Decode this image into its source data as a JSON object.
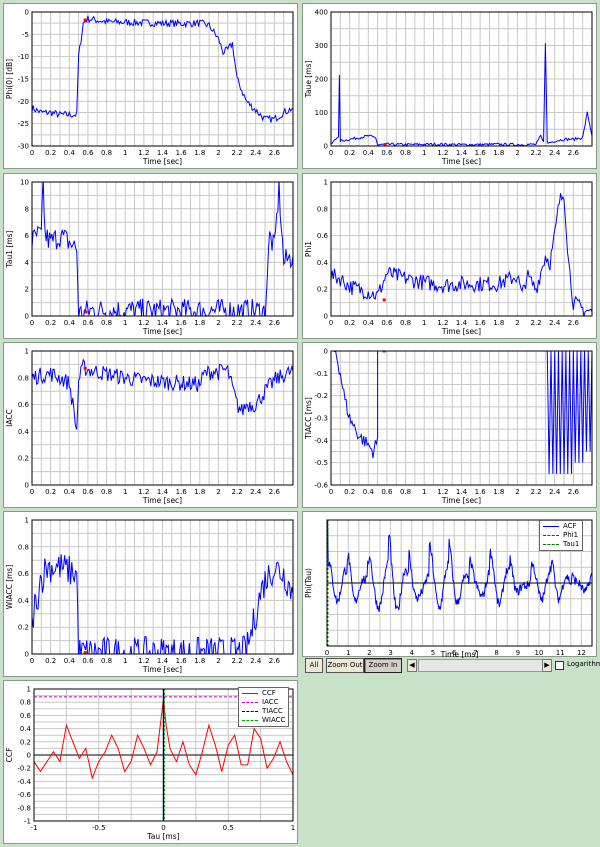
{
  "chart_data": [
    {
      "id": "phi0",
      "type": "line",
      "ylabel": "Phi(0) [dB]",
      "xlabel": "Time [sec]",
      "xlim": [
        0,
        2.8
      ],
      "ylim": [
        -30,
        0
      ],
      "xticks": [
        0,
        0.2,
        0.4,
        0.6,
        0.8,
        1,
        1.2,
        1.4,
        1.6,
        1.8,
        2,
        2.2,
        2.4,
        2.6
      ],
      "yticks": [
        0,
        -5,
        -10,
        -15,
        -20,
        -25,
        -30
      ],
      "series": [
        {
          "color": "#0000ff",
          "noise": 0.8,
          "x": [
            0,
            0.1,
            0.2,
            0.3,
            0.4,
            0.48,
            0.5,
            0.55,
            0.6,
            0.8,
            1.0,
            1.2,
            1.4,
            1.6,
            1.8,
            1.9,
            2.0,
            2.05,
            2.1,
            2.15,
            2.2,
            2.3,
            2.4,
            2.5,
            2.6,
            2.7,
            2.8
          ],
          "y": [
            -21.5,
            -22.5,
            -22.5,
            -23,
            -23,
            -23,
            -10,
            -2.5,
            -1.5,
            -2.2,
            -2.3,
            -2.4,
            -2.5,
            -2.6,
            -2.5,
            -3,
            -6,
            -9,
            -8.5,
            -7,
            -15,
            -20,
            -22,
            -24,
            -24,
            -22.5,
            -21.5
          ]
        }
      ],
      "markers": [
        {
          "x": 0.57,
          "y": -1.8
        }
      ]
    },
    {
      "id": "taue",
      "type": "line",
      "ylabel": "Taue [ms]",
      "xlabel": "Time [sec]",
      "xlim": [
        0,
        2.8
      ],
      "ylim": [
        0,
        400
      ],
      "xticks": [
        0,
        0.2,
        0.4,
        0.6,
        0.8,
        1,
        1.2,
        1.4,
        1.6,
        1.8,
        2,
        2.2,
        2.4,
        2.6
      ],
      "yticks": [
        0,
        100,
        200,
        300,
        400
      ],
      "series": [
        {
          "color": "#0000ff",
          "noise": 4,
          "x": [
            0,
            0.05,
            0.08,
            0.09,
            0.1,
            0.2,
            0.3,
            0.4,
            0.48,
            0.5,
            0.6,
            0.8,
            1.0,
            1.2,
            1.4,
            1.6,
            1.8,
            2.0,
            2.2,
            2.25,
            2.28,
            2.3,
            2.32,
            2.4,
            2.5,
            2.6,
            2.7,
            2.75,
            2.8
          ],
          "y": [
            5,
            20,
            30,
            210,
            15,
            20,
            25,
            30,
            25,
            3,
            5,
            4,
            5,
            5,
            4,
            4,
            5,
            4,
            5,
            30,
            10,
            310,
            8,
            15,
            20,
            20,
            25,
            100,
            30
          ]
        }
      ],
      "markers": [
        {
          "x": 0.58,
          "y": 4
        }
      ]
    },
    {
      "id": "tau1",
      "type": "line",
      "ylabel": "Tau1 [ms]",
      "xlabel": "Time [sec]",
      "xlim": [
        0,
        2.8
      ],
      "ylim": [
        0,
        10
      ],
      "xticks": [
        0,
        0.2,
        0.4,
        0.6,
        0.8,
        1,
        1.2,
        1.4,
        1.6,
        1.8,
        2,
        2.2,
        2.4,
        2.6
      ],
      "yticks": [
        0,
        2,
        4,
        6,
        8,
        10
      ],
      "series": [
        {
          "color": "#0000ff",
          "noise": 0.9,
          "x": [
            0,
            0.05,
            0.1,
            0.12,
            0.14,
            0.2,
            0.3,
            0.4,
            0.48,
            0.5,
            0.55,
            0.6,
            0.8,
            1.0,
            1.2,
            1.4,
            1.6,
            1.8,
            1.9,
            2.0,
            2.2,
            2.4,
            2.5,
            2.55,
            2.6,
            2.65,
            2.7,
            2.8
          ],
          "y": [
            5.5,
            6,
            6,
            10,
            6,
            5.5,
            6,
            5.5,
            5,
            0.2,
            0.2,
            0.4,
            0.4,
            0.4,
            0.4,
            0.4,
            0.4,
            0.4,
            0.4,
            0.4,
            0.4,
            0.4,
            0.3,
            6,
            5,
            9.5,
            4,
            4.5
          ]
        }
      ],
      "markers": [
        {
          "x": 0.58,
          "y": 0.3
        }
      ]
    },
    {
      "id": "phi1",
      "type": "line",
      "ylabel": "Phi1",
      "xlabel": "Time [sec]",
      "xlim": [
        0,
        2.8
      ],
      "ylim": [
        0,
        1
      ],
      "xticks": [
        0,
        0.2,
        0.4,
        0.6,
        0.8,
        1,
        1.2,
        1.4,
        1.6,
        1.8,
        2,
        2.2,
        2.4,
        2.6
      ],
      "yticks": [
        0,
        0.2,
        0.4,
        0.6,
        0.8,
        1
      ],
      "series": [
        {
          "color": "#0000ff",
          "noise": 0.06,
          "x": [
            0,
            0.1,
            0.2,
            0.3,
            0.4,
            0.5,
            0.6,
            0.7,
            0.8,
            1.0,
            1.2,
            1.4,
            1.6,
            1.8,
            2.0,
            2.05,
            2.1,
            2.2,
            2.3,
            2.35,
            2.4,
            2.45,
            2.5,
            2.55,
            2.6,
            2.7,
            2.8
          ],
          "y": [
            0.3,
            0.28,
            0.22,
            0.2,
            0.18,
            0.15,
            0.32,
            0.3,
            0.28,
            0.25,
            0.23,
            0.24,
            0.24,
            0.24,
            0.3,
            0.15,
            0.3,
            0.2,
            0.45,
            0.4,
            0.6,
            0.85,
            0.92,
            0.4,
            0.1,
            0.05,
            0.03
          ]
        }
      ],
      "markers": [
        {
          "x": 0.57,
          "y": 0.12
        }
      ]
    },
    {
      "id": "iacc",
      "type": "line",
      "ylabel": "IACC",
      "xlabel": "Time [sec]",
      "xlim": [
        0,
        2.8
      ],
      "ylim": [
        0,
        1
      ],
      "xticks": [
        0,
        0.2,
        0.4,
        0.6,
        0.8,
        1,
        1.2,
        1.4,
        1.6,
        1.8,
        2,
        2.2,
        2.4,
        2.6
      ],
      "yticks": [
        0,
        0.2,
        0.4,
        0.6,
        0.8,
        1
      ],
      "series": [
        {
          "color": "#0000ff",
          "noise": 0.06,
          "x": [
            0,
            0.1,
            0.2,
            0.3,
            0.4,
            0.45,
            0.48,
            0.5,
            0.55,
            0.6,
            0.8,
            1.0,
            1.2,
            1.4,
            1.6,
            1.8,
            1.85,
            1.95,
            2.0,
            2.05,
            2.1,
            2.2,
            2.25,
            2.3,
            2.4,
            2.5,
            2.6,
            2.7,
            2.8
          ],
          "y": [
            0.8,
            0.82,
            0.83,
            0.8,
            0.76,
            0.55,
            0.4,
            0.78,
            0.88,
            0.86,
            0.83,
            0.8,
            0.78,
            0.77,
            0.76,
            0.75,
            0.83,
            0.85,
            0.84,
            0.86,
            0.85,
            0.6,
            0.55,
            0.6,
            0.6,
            0.7,
            0.78,
            0.82,
            0.85
          ]
        }
      ],
      "markers": [
        {
          "x": 0.57,
          "y": 0.87
        }
      ]
    },
    {
      "id": "tiacc",
      "type": "line",
      "ylabel": "TIACC [ms]",
      "xlabel": "Time [sec]",
      "xlim": [
        0,
        2.8
      ],
      "ylim": [
        -0.6,
        0
      ],
      "xticks": [
        0,
        0.2,
        0.4,
        0.6,
        0.8,
        1,
        1.2,
        1.4,
        1.6,
        1.8,
        2,
        2.2,
        2.4,
        2.6
      ],
      "yticks": [
        0,
        -0.1,
        -0.2,
        -0.3,
        -0.4,
        -0.5,
        -0.6
      ],
      "series": [
        {
          "color": "#0000ff",
          "noise": 0.03,
          "x": [
            0,
            0.05,
            0.1,
            0.15,
            0.2,
            0.3,
            0.4,
            0.45,
            0.5,
            0.5
          ],
          "y": [
            0,
            0,
            -0.1,
            -0.22,
            -0.3,
            -0.38,
            -0.42,
            -0.45,
            -0.4,
            0
          ]
        },
        {
          "color": "#0000ff",
          "noise": 0.0,
          "x": [
            2.32,
            2.34,
            2.36,
            2.38,
            2.4,
            2.42,
            2.44,
            2.46,
            2.48,
            2.5,
            2.52,
            2.54,
            2.56,
            2.58,
            2.6,
            2.62,
            2.64,
            2.66,
            2.68,
            2.7,
            2.72,
            2.74,
            2.76,
            2.78,
            2.8
          ],
          "y": [
            0,
            -0.55,
            0,
            -0.55,
            0,
            -0.55,
            0,
            -0.55,
            0,
            -0.55,
            0,
            -0.55,
            0,
            -0.55,
            0,
            -0.5,
            0,
            -0.5,
            0,
            -0.5,
            0,
            -0.45,
            0,
            -0.45,
            0
          ]
        }
      ],
      "markers": [
        {
          "x": 0.57,
          "y": 0
        }
      ]
    },
    {
      "id": "wiacc",
      "type": "line",
      "ylabel": "WIACC [ms]",
      "xlabel": "Time [sec]",
      "xlim": [
        0,
        2.8
      ],
      "ylim": [
        0,
        1
      ],
      "xticks": [
        0,
        0.2,
        0.4,
        0.6,
        0.8,
        1,
        1.2,
        1.4,
        1.6,
        1.8,
        2,
        2.2,
        2.4,
        2.6
      ],
      "yticks": [
        0,
        0.2,
        0.4,
        0.6,
        0.8,
        1
      ],
      "series": [
        {
          "color": "#0000ff",
          "noise": 0.12,
          "x": [
            0,
            0.03,
            0.05,
            0.08,
            0.1,
            0.15,
            0.2,
            0.3,
            0.4,
            0.48,
            0.5,
            0.55,
            0.6,
            0.8,
            1.0,
            1.2,
            1.4,
            1.6,
            1.8,
            2.0,
            2.2,
            2.3,
            2.35,
            2.4,
            2.45,
            2.5,
            2.55,
            2.6,
            2.7,
            2.8
          ],
          "y": [
            0.2,
            0.4,
            0.3,
            0.6,
            0.55,
            0.65,
            0.65,
            0.65,
            0.62,
            0.6,
            0.01,
            0.01,
            0.01,
            0.01,
            0.01,
            0.01,
            0.01,
            0.01,
            0.01,
            0.01,
            0.01,
            0.02,
            0.15,
            0.3,
            0.45,
            0.55,
            0.6,
            0.65,
            0.6,
            0.45
          ]
        }
      ],
      "markers": [
        {
          "x": 0.57,
          "y": 0.01
        }
      ]
    },
    {
      "id": "phitau",
      "type": "line",
      "ylabel": "Phi(Tau)",
      "xlabel": "Time [ms]",
      "xlim": [
        0,
        12.5
      ],
      "ylim": [
        -1,
        1
      ],
      "xticks": [
        0,
        1,
        2,
        3,
        4,
        5,
        6,
        7,
        8,
        9,
        10,
        11,
        12
      ],
      "series": [
        {
          "name": "ACF",
          "color": "#0000ff",
          "noise": 0.0,
          "type": "acf"
        },
        {
          "name": "Phi1",
          "color": "#cc0000",
          "dash": true
        },
        {
          "name": "Tau1",
          "color": "#007700",
          "dash": true
        }
      ],
      "acf_peaks": [
        0.35,
        0.55,
        0.8,
        0.65,
        0.7,
        0.6,
        0.55,
        0.45,
        0.45,
        0.4,
        0.35,
        0.3,
        0.3
      ]
    },
    {
      "id": "ccf",
      "type": "line",
      "ylabel": "CCF",
      "xlabel": "Tau [ms]",
      "xlim": [
        -1,
        1
      ],
      "ylim": [
        -1,
        1
      ],
      "xticks": [
        -1,
        -0.5,
        0,
        0.5,
        1
      ],
      "xticklabels": [
        "-1",
        "-0.5",
        "0",
        "0.5",
        "1"
      ],
      "yticks": [
        1,
        0.8,
        0.6,
        0.4,
        0.2,
        0,
        -0.2,
        -0.4,
        -0.6,
        -0.8,
        -1
      ],
      "series": [
        {
          "name": "CCF",
          "color": "#ff0000",
          "x": [
            -1,
            -0.95,
            -0.9,
            -0.85,
            -0.8,
            -0.75,
            -0.7,
            -0.65,
            -0.6,
            -0.55,
            -0.5,
            -0.45,
            -0.4,
            -0.35,
            -0.3,
            -0.25,
            -0.2,
            -0.15,
            -0.1,
            -0.05,
            0,
            0.02,
            0.05,
            0.1,
            0.15,
            0.2,
            0.25,
            0.3,
            0.35,
            0.4,
            0.45,
            0.5,
            0.55,
            0.6,
            0.65,
            0.7,
            0.75,
            0.8,
            0.85,
            0.9,
            0.95,
            1
          ],
          "y": [
            -0.1,
            -0.25,
            -0.1,
            0.05,
            -0.1,
            0.45,
            0.2,
            -0.05,
            0.1,
            -0.35,
            -0.1,
            0.05,
            0.3,
            0.1,
            -0.25,
            -0.1,
            0.3,
            0.1,
            -0.15,
            0.05,
            0.85,
            0.45,
            0.1,
            -0.1,
            0.2,
            -0.15,
            -0.3,
            0.05,
            0.45,
            0.15,
            -0.25,
            0.15,
            0.3,
            -0.15,
            -0.15,
            0.4,
            0.25,
            -0.2,
            -0.05,
            0.2,
            -0.1,
            -0.3
          ]
        },
        {
          "name": "IACC",
          "color": "#cc00cc",
          "dash": true,
          "hline": 0.88
        },
        {
          "name": "TIACC",
          "color": "#000066",
          "dash": true,
          "vline": 0.0
        },
        {
          "name": "WIACC",
          "color": "#00aa00",
          "dash": true
        }
      ]
    }
  ],
  "toolbar": {
    "all": "All",
    "zoom_out": "Zoom Out",
    "zoom_in": "Zoom In",
    "log": "Logarithm",
    "left_arrow": "◀",
    "right_arrow": "▶"
  }
}
